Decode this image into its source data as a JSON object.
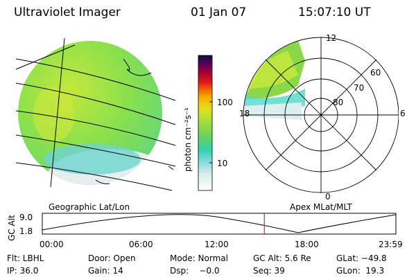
{
  "header": {
    "title": "Ultraviolet Imager",
    "date": "01 Jan 07",
    "time": "15:07:10 UT"
  },
  "colorbar": {
    "label": "photon cm⁻²s⁻¹",
    "ticks": [
      "100",
      "10"
    ]
  },
  "polar": {
    "mlt_labels": [
      "12",
      "18",
      "6",
      "0"
    ],
    "lat_labels": [
      "60",
      "70",
      "80"
    ]
  },
  "panels": {
    "left_caption": "Geographic Lat/Lon",
    "right_caption": "Apex MLat/MLT"
  },
  "orbit_plot": {
    "ylabel": "GC Alt",
    "y_ticks": [
      "9.0",
      "1.8"
    ],
    "x_ticks": [
      "00:00",
      "06:00",
      "12:00",
      "18:00",
      "23:59"
    ],
    "current_time_fraction": 0.628
  },
  "footer": {
    "row1": {
      "filter": "Flt: LBHL",
      "door": "Door: Open",
      "mode": "Mode: Normal",
      "gc_alt": "GC Alt: 5.6 Re",
      "glat": "GLat: −49.8"
    },
    "row2": {
      "ip": "IP: 36.0",
      "gain": "Gain: 14",
      "dsp": "Dsp:    −0.0",
      "seq": "Seq: 39",
      "glon": "GLon:  19.3"
    }
  },
  "colors": {
    "image_green": "#7fe04a",
    "image_yellow": "#c8ea3a",
    "image_cyan": "#4fd8c8",
    "orbit_marker": "#e02020"
  }
}
